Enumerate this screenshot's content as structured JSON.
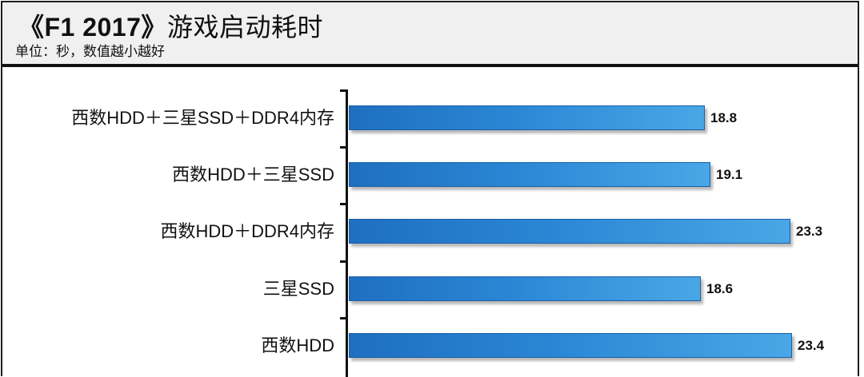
{
  "header": {
    "title_bold": "《F1 2017》",
    "title_rest": "游戏启动耗时",
    "subtitle": "单位：秒，数值越小越好"
  },
  "colors": {
    "bar_start": "#1f6fc0",
    "bar_end": "#49a7e6",
    "bar_border": "#1a5fa8",
    "header_bg": "#f0f0f0",
    "text": "#111111"
  },
  "chart_data": {
    "type": "bar",
    "orientation": "horizontal",
    "title": "《F1 2017》游戏启动耗时",
    "subtitle": "单位：秒，数值越小越好",
    "xlabel": "",
    "ylabel": "",
    "grid": false,
    "legend": null,
    "categories": [
      "西数HDD＋三星SSD＋DDR4内存",
      "西数HDD＋三星SSD",
      "西数HDD＋DDR4内存",
      "三星SSD",
      "西数HDD"
    ],
    "values": [
      18.8,
      19.1,
      23.3,
      18.6,
      23.4
    ],
    "value_labels": [
      "18.8",
      "19.1",
      "23.3",
      "18.6",
      "23.4"
    ],
    "unit": "秒",
    "xlim": [
      0,
      23.4
    ]
  }
}
